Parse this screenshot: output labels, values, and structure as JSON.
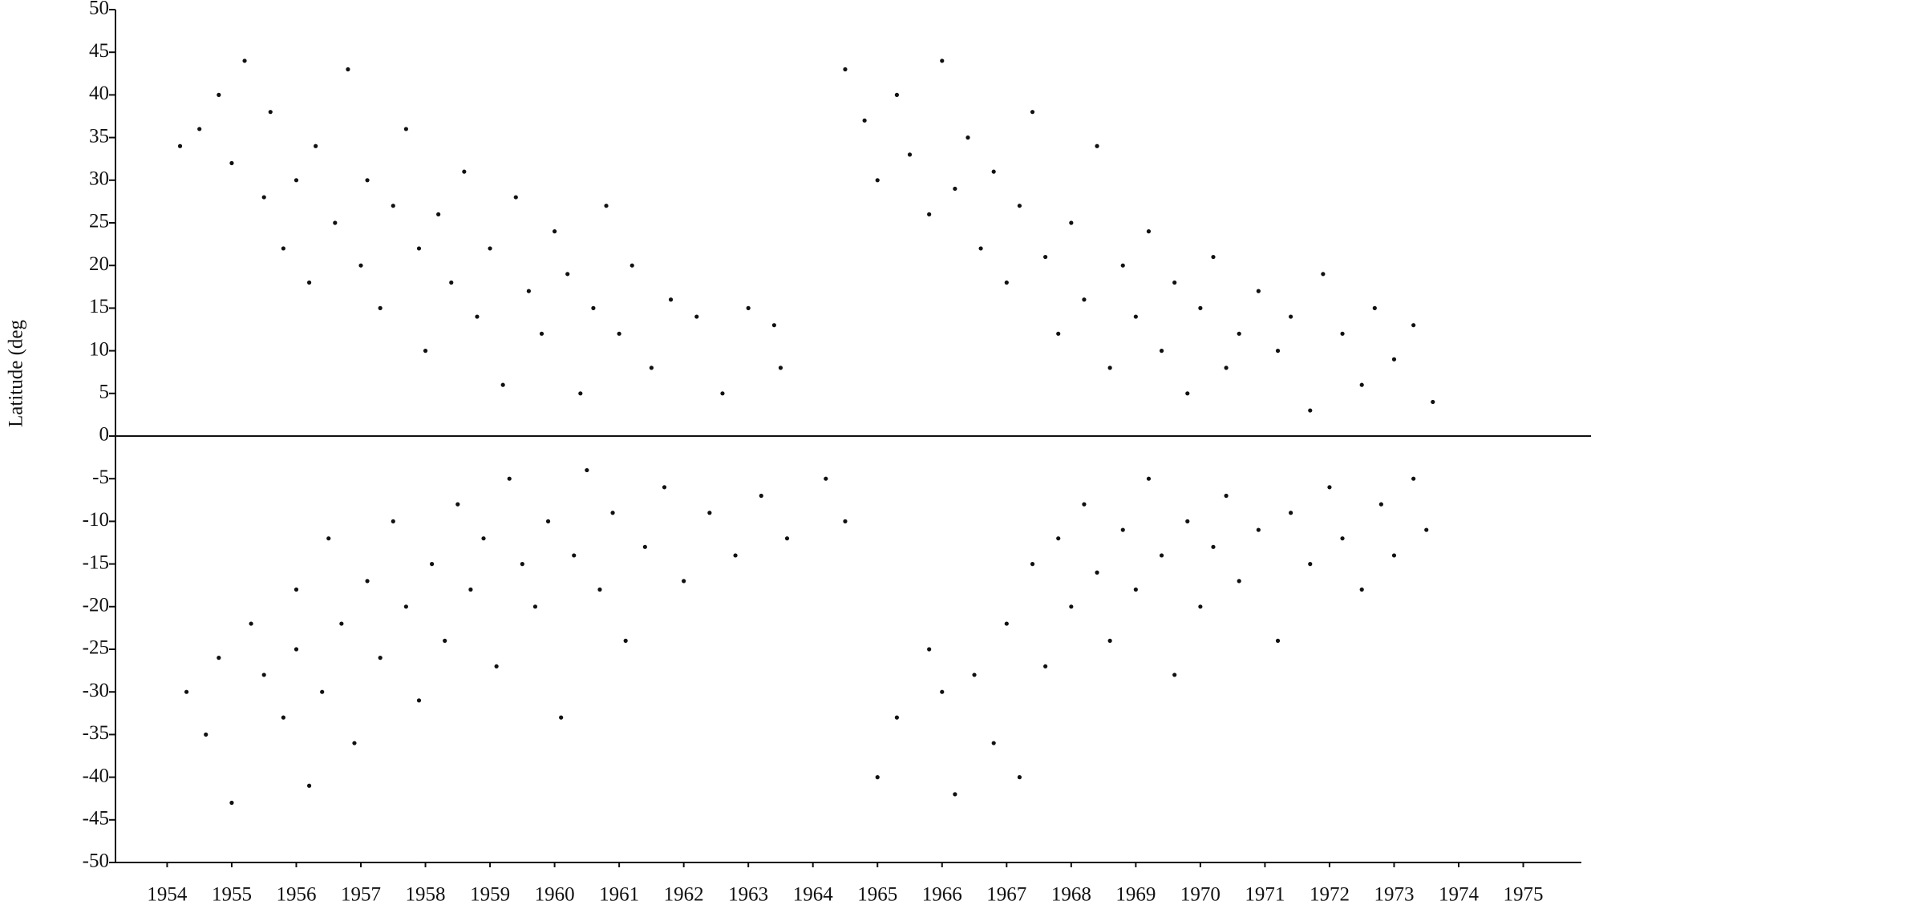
{
  "chart_data": {
    "type": "scatter",
    "y_label": "Latitude (deg",
    "xlim": [
      1953.2,
      1975.9
    ],
    "ylim": [
      -50,
      50
    ],
    "xticks": [
      1954,
      1955,
      1956,
      1957,
      1958,
      1959,
      1960,
      1961,
      1962,
      1963,
      1964,
      1965,
      1966,
      1967,
      1968,
      1969,
      1970,
      1971,
      1972,
      1973,
      1974,
      1975
    ],
    "yticks": [
      50,
      45,
      40,
      35,
      30,
      25,
      20,
      15,
      10,
      5,
      0,
      -5,
      -10,
      -15,
      -20,
      -25,
      -30,
      -35,
      -40,
      -45,
      -50
    ],
    "color": "#111111",
    "x": [
      1954.2,
      1954.5,
      1954.8,
      1955.0,
      1955.2,
      1955.5,
      1955.6,
      1955.8,
      1956.0,
      1956.2,
      1956.3,
      1956.6,
      1956.8,
      1957.0,
      1957.1,
      1957.3,
      1957.5,
      1957.7,
      1957.9,
      1958.0,
      1958.2,
      1958.4,
      1958.6,
      1958.8,
      1959.0,
      1959.2,
      1959.4,
      1959.6,
      1959.8,
      1960.0,
      1960.2,
      1960.4,
      1960.6,
      1960.8,
      1961.0,
      1961.2,
      1961.5,
      1961.8,
      1962.2,
      1962.6,
      1963.0,
      1963.4,
      1963.5,
      1954.3,
      1954.6,
      1954.8,
      1955.0,
      1955.3,
      1955.5,
      1955.8,
      1956.0,
      1956.0,
      1956.2,
      1956.4,
      1956.5,
      1956.7,
      1956.9,
      1957.1,
      1957.3,
      1957.5,
      1957.7,
      1957.9,
      1958.1,
      1958.3,
      1958.5,
      1958.7,
      1958.9,
      1959.1,
      1959.3,
      1959.5,
      1959.7,
      1959.9,
      1960.1,
      1960.3,
      1960.5,
      1960.7,
      1960.9,
      1961.1,
      1961.4,
      1961.7,
      1962.0,
      1962.4,
      1962.8,
      1963.2,
      1963.6,
      1964.2,
      1964.5,
      1964.5,
      1964.8,
      1965.0,
      1965.3,
      1965.5,
      1965.8,
      1966.0,
      1966.2,
      1966.4,
      1966.6,
      1966.8,
      1967.0,
      1967.2,
      1967.4,
      1967.6,
      1967.8,
      1968.0,
      1968.2,
      1968.4,
      1968.6,
      1968.8,
      1969.0,
      1969.2,
      1969.4,
      1969.6,
      1969.8,
      1970.0,
      1970.2,
      1970.4,
      1970.6,
      1970.9,
      1971.2,
      1971.4,
      1971.7,
      1971.9,
      1972.2,
      1972.5,
      1972.7,
      1973.0,
      1973.3,
      1973.6,
      1965.0,
      1965.3,
      1965.8,
      1966.0,
      1966.2,
      1966.5,
      1966.8,
      1967.0,
      1967.2,
      1967.4,
      1967.6,
      1967.8,
      1968.0,
      1968.2,
      1968.4,
      1968.6,
      1968.8,
      1969.0,
      1969.2,
      1969.4,
      1969.6,
      1969.8,
      1970.0,
      1970.2,
      1970.4,
      1970.6,
      1970.9,
      1971.2,
      1971.4,
      1971.7,
      1972.0,
      1972.2,
      1972.5,
      1972.8,
      1973.0,
      1973.3,
      1973.5
    ],
    "values": [
      34,
      36,
      40,
      32,
      44,
      28,
      38,
      22,
      30,
      18,
      34,
      25,
      43,
      20,
      30,
      15,
      27,
      36,
      22,
      10,
      26,
      18,
      31,
      14,
      22,
      6,
      28,
      17,
      12,
      24,
      19,
      5,
      15,
      27,
      12,
      20,
      8,
      16,
      14,
      5,
      15,
      13,
      8,
      -30,
      -35,
      -26,
      -43,
      -22,
      -28,
      -33,
      -18,
      -25,
      -41,
      -30,
      -12,
      -22,
      -36,
      -17,
      -26,
      -10,
      -20,
      -31,
      -15,
      -24,
      -8,
      -18,
      -12,
      -27,
      -5,
      -15,
      -20,
      -10,
      -33,
      -14,
      -4,
      -18,
      -9,
      -24,
      -13,
      -6,
      -17,
      -9,
      -14,
      -7,
      -12,
      -5,
      -10,
      43,
      37,
      30,
      40,
      33,
      26,
      44,
      29,
      35,
      22,
      31,
      18,
      27,
      38,
      21,
      12,
      25,
      16,
      34,
      8,
      20,
      14,
      24,
      10,
      18,
      5,
      15,
      21,
      8,
      12,
      17,
      10,
      14,
      3,
      19,
      12,
      6,
      15,
      9,
      13,
      4,
      -40,
      -33,
      -25,
      -30,
      -42,
      -28,
      -36,
      -22,
      -40,
      -15,
      -27,
      -12,
      -20,
      -8,
      -16,
      -24,
      -11,
      -18,
      -5,
      -14,
      -28,
      -10,
      -20,
      -13,
      -7,
      -17,
      -11,
      -24,
      -9,
      -15,
      -6,
      -12,
      -18,
      -8,
      -14,
      -5,
      -11
    ]
  }
}
